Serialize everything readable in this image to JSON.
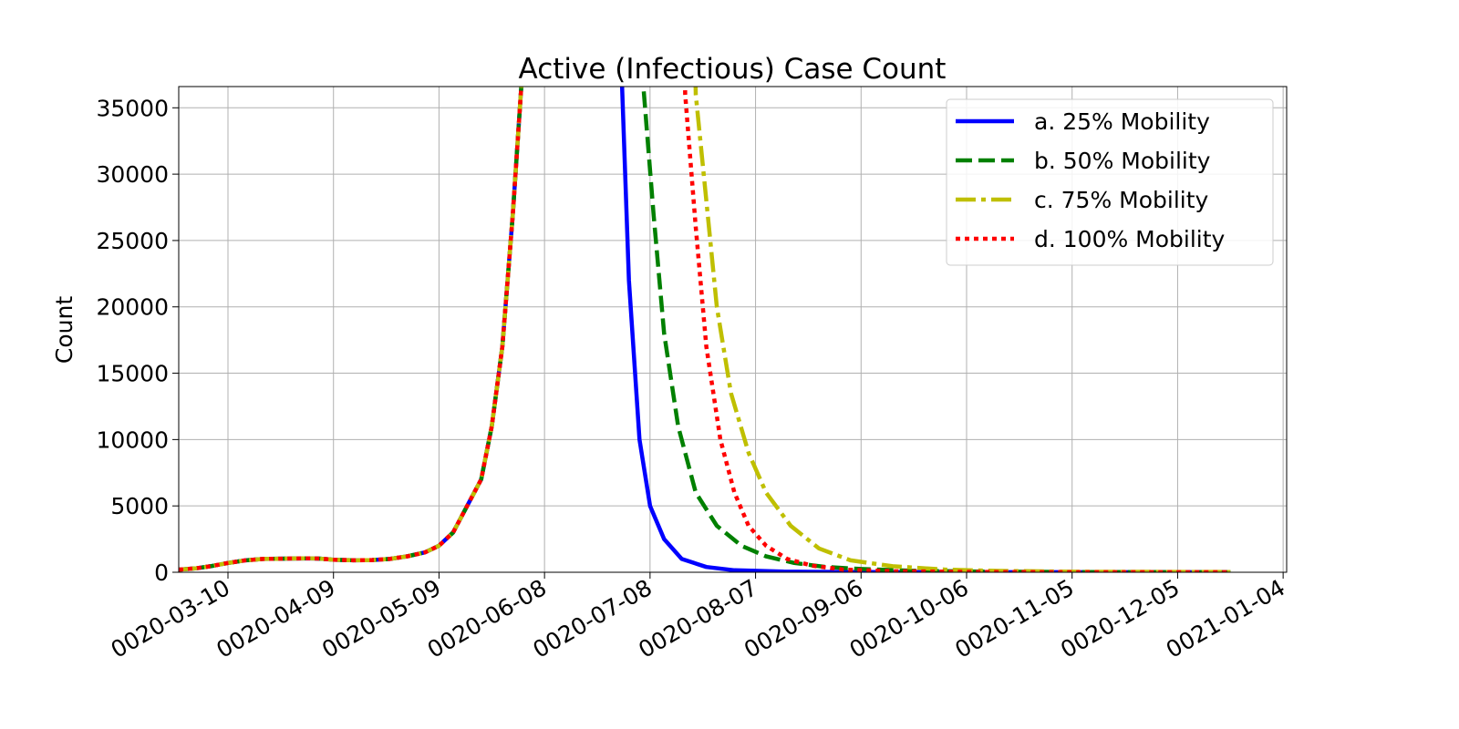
{
  "chart_data": {
    "type": "line",
    "title": "Active (Infectious) Case Count",
    "xlabel": "",
    "ylabel": "Count",
    "x_type": "date",
    "xlim": [
      "0020-02-25",
      "0021-01-05"
    ],
    "ylim": [
      0,
      36600
    ],
    "x_ticks": [
      "0020-03-10",
      "0020-04-09",
      "0020-05-09",
      "0020-06-08",
      "0020-07-08",
      "0020-08-07",
      "0020-09-06",
      "0020-10-06",
      "0020-11-05",
      "0020-12-05",
      "0021-01-04"
    ],
    "y_ticks": [
      0,
      5000,
      10000,
      15000,
      20000,
      25000,
      30000,
      35000
    ],
    "grid": true,
    "legend_position": "top-right",
    "series": [
      {
        "name": "a. 25% Mobility",
        "color": "#0000ff",
        "style": "solid",
        "points": [
          [
            "0020-02-25",
            200
          ],
          [
            "0020-03-01",
            300
          ],
          [
            "0020-03-05",
            450
          ],
          [
            "0020-03-10",
            700
          ],
          [
            "0020-03-15",
            900
          ],
          [
            "0020-03-20",
            1000
          ],
          [
            "0020-03-25",
            1020
          ],
          [
            "0020-04-01",
            1050
          ],
          [
            "0020-04-05",
            1030
          ],
          [
            "0020-04-09",
            950
          ],
          [
            "0020-04-15",
            900
          ],
          [
            "0020-04-20",
            920
          ],
          [
            "0020-04-25",
            1000
          ],
          [
            "0020-04-30",
            1200
          ],
          [
            "0020-05-05",
            1500
          ],
          [
            "0020-05-09",
            2000
          ],
          [
            "0020-05-13",
            3000
          ],
          [
            "0020-05-17",
            5000
          ],
          [
            "0020-05-21",
            7000
          ],
          [
            "0020-05-24",
            11000
          ],
          [
            "0020-05-27",
            17000
          ],
          [
            "0020-05-30",
            27000
          ],
          [
            "0020-06-02",
            39000
          ],
          [
            "0020-06-04",
            50000
          ],
          [
            "0020-06-28",
            50000
          ],
          [
            "0020-06-30",
            37000
          ],
          [
            "0020-07-02",
            22000
          ],
          [
            "0020-07-05",
            10000
          ],
          [
            "0020-07-08",
            5000
          ],
          [
            "0020-07-12",
            2500
          ],
          [
            "0020-07-17",
            1000
          ],
          [
            "0020-07-24",
            400
          ],
          [
            "0020-08-01",
            150
          ],
          [
            "0020-08-15",
            50
          ],
          [
            "0020-09-06",
            20
          ],
          [
            "0020-10-06",
            10
          ],
          [
            "0020-11-05",
            5
          ],
          [
            "0020-12-20",
            5
          ]
        ]
      },
      {
        "name": "b. 50% Mobility",
        "color": "#008000",
        "style": "dashed",
        "points": [
          [
            "0020-02-25",
            200
          ],
          [
            "0020-03-01",
            300
          ],
          [
            "0020-03-05",
            450
          ],
          [
            "0020-03-10",
            700
          ],
          [
            "0020-03-15",
            900
          ],
          [
            "0020-03-20",
            1000
          ],
          [
            "0020-03-25",
            1020
          ],
          [
            "0020-04-01",
            1050
          ],
          [
            "0020-04-05",
            1030
          ],
          [
            "0020-04-09",
            950
          ],
          [
            "0020-04-15",
            900
          ],
          [
            "0020-04-20",
            920
          ],
          [
            "0020-04-25",
            1000
          ],
          [
            "0020-04-30",
            1200
          ],
          [
            "0020-05-05",
            1500
          ],
          [
            "0020-05-09",
            2000
          ],
          [
            "0020-05-13",
            3000
          ],
          [
            "0020-05-17",
            5000
          ],
          [
            "0020-05-21",
            7000
          ],
          [
            "0020-05-24",
            11000
          ],
          [
            "0020-05-27",
            17000
          ],
          [
            "0020-05-30",
            27000
          ],
          [
            "0020-06-02",
            39000
          ],
          [
            "0020-06-04",
            50000
          ],
          [
            "0020-07-05",
            50000
          ],
          [
            "0020-07-06",
            37000
          ],
          [
            "0020-07-09",
            27000
          ],
          [
            "0020-07-12",
            18000
          ],
          [
            "0020-07-16",
            11000
          ],
          [
            "0020-07-21",
            6000
          ],
          [
            "0020-07-27",
            3500
          ],
          [
            "0020-08-03",
            2000
          ],
          [
            "0020-08-10",
            1200
          ],
          [
            "0020-08-18",
            700
          ],
          [
            "0020-08-27",
            400
          ],
          [
            "0020-09-06",
            250
          ],
          [
            "0020-09-20",
            120
          ],
          [
            "0020-10-06",
            60
          ],
          [
            "0020-11-05",
            20
          ],
          [
            "0020-12-20",
            10
          ]
        ]
      },
      {
        "name": "c. 75% Mobility",
        "color": "#bfbf00",
        "style": "dashdot",
        "points": [
          [
            "0020-02-25",
            200
          ],
          [
            "0020-03-01",
            300
          ],
          [
            "0020-03-05",
            450
          ],
          [
            "0020-03-10",
            700
          ],
          [
            "0020-03-15",
            900
          ],
          [
            "0020-03-20",
            1000
          ],
          [
            "0020-03-25",
            1020
          ],
          [
            "0020-04-01",
            1050
          ],
          [
            "0020-04-05",
            1030
          ],
          [
            "0020-04-09",
            950
          ],
          [
            "0020-04-15",
            900
          ],
          [
            "0020-04-20",
            920
          ],
          [
            "0020-04-25",
            1000
          ],
          [
            "0020-04-30",
            1200
          ],
          [
            "0020-05-05",
            1500
          ],
          [
            "0020-05-09",
            2000
          ],
          [
            "0020-05-13",
            3000
          ],
          [
            "0020-05-17",
            5000
          ],
          [
            "0020-05-21",
            7000
          ],
          [
            "0020-05-24",
            11000
          ],
          [
            "0020-05-27",
            17000
          ],
          [
            "0020-05-30",
            27000
          ],
          [
            "0020-06-02",
            39000
          ],
          [
            "0020-06-04",
            50000
          ],
          [
            "0020-07-20",
            50000
          ],
          [
            "0020-07-21",
            36000
          ],
          [
            "0020-07-24",
            28000
          ],
          [
            "0020-07-27",
            20000
          ],
          [
            "0020-07-31",
            13500
          ],
          [
            "0020-08-05",
            9000
          ],
          [
            "0020-08-10",
            6000
          ],
          [
            "0020-08-17",
            3500
          ],
          [
            "0020-08-25",
            1800
          ],
          [
            "0020-09-03",
            900
          ],
          [
            "0020-09-15",
            450
          ],
          [
            "0020-09-30",
            200
          ],
          [
            "0020-10-15",
            100
          ],
          [
            "0020-11-05",
            40
          ],
          [
            "0020-12-20",
            20
          ]
        ]
      },
      {
        "name": "d. 100% Mobility",
        "color": "#ff0000",
        "style": "dotted",
        "points": [
          [
            "0020-02-25",
            200
          ],
          [
            "0020-03-01",
            300
          ],
          [
            "0020-03-05",
            450
          ],
          [
            "0020-03-10",
            700
          ],
          [
            "0020-03-15",
            900
          ],
          [
            "0020-03-20",
            1000
          ],
          [
            "0020-03-25",
            1020
          ],
          [
            "0020-04-01",
            1050
          ],
          [
            "0020-04-05",
            1030
          ],
          [
            "0020-04-09",
            950
          ],
          [
            "0020-04-15",
            900
          ],
          [
            "0020-04-20",
            920
          ],
          [
            "0020-04-25",
            1000
          ],
          [
            "0020-04-30",
            1200
          ],
          [
            "0020-05-05",
            1500
          ],
          [
            "0020-05-09",
            2000
          ],
          [
            "0020-05-13",
            3000
          ],
          [
            "0020-05-17",
            5000
          ],
          [
            "0020-05-21",
            7000
          ],
          [
            "0020-05-24",
            11000
          ],
          [
            "0020-05-27",
            17000
          ],
          [
            "0020-05-30",
            27000
          ],
          [
            "0020-06-02",
            39000
          ],
          [
            "0020-06-04",
            50000
          ],
          [
            "0020-07-17",
            50000
          ],
          [
            "0020-07-18",
            36000
          ],
          [
            "0020-07-21",
            26000
          ],
          [
            "0020-07-24",
            17000
          ],
          [
            "0020-07-28",
            10000
          ],
          [
            "0020-08-01",
            6000
          ],
          [
            "0020-08-05",
            3500
          ],
          [
            "0020-08-10",
            2000
          ],
          [
            "0020-08-16",
            1000
          ],
          [
            "0020-08-23",
            500
          ],
          [
            "0020-09-01",
            200
          ],
          [
            "0020-09-15",
            80
          ],
          [
            "0020-10-06",
            30
          ],
          [
            "0020-11-05",
            10
          ],
          [
            "0020-12-20",
            5
          ]
        ]
      }
    ]
  }
}
